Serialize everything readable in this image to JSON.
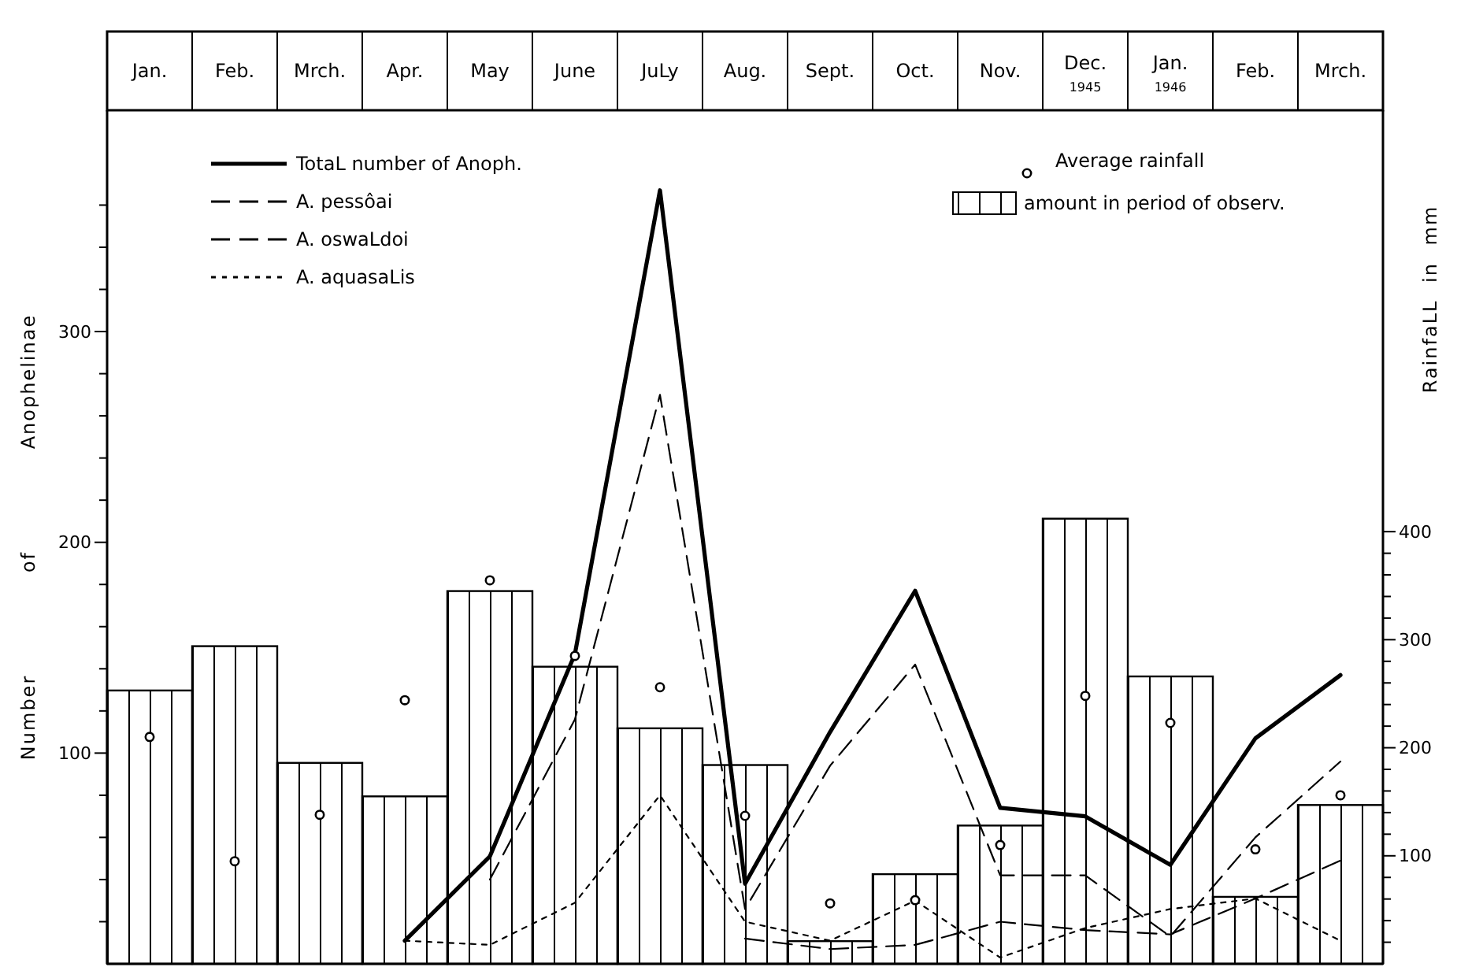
{
  "chart_data": {
    "type": "line",
    "categories": [
      "Jan.",
      "Feb.",
      "Mrch.",
      "Apr.",
      "May",
      "June",
      "JuLy",
      "Aug.",
      "Sept.",
      "Oct.",
      "Nov.",
      "Dec.\n1945",
      "Jan.\n1946",
      "Feb.",
      "Mrch."
    ],
    "ylabel": "Number of Anophelinae",
    "y2label": "RainfaLL in mm",
    "ylim": [
      0,
      405
    ],
    "yticks": [
      {
        "value": 20,
        "label": null
      },
      {
        "value": 40,
        "label": null
      },
      {
        "value": 60,
        "label": null
      },
      {
        "value": 80,
        "label": null
      },
      {
        "value": 100,
        "label": "100"
      },
      {
        "value": 120,
        "label": null
      },
      {
        "value": 140,
        "label": null
      },
      {
        "value": 160,
        "label": null
      },
      {
        "value": 180,
        "label": null
      },
      {
        "value": 200,
        "label": "200"
      },
      {
        "value": 220,
        "label": null
      },
      {
        "value": 240,
        "label": null
      },
      {
        "value": 260,
        "label": null
      },
      {
        "value": 280,
        "label": null
      },
      {
        "value": 300,
        "label": "300"
      },
      {
        "value": 320,
        "label": null
      },
      {
        "value": 340,
        "label": null
      },
      {
        "value": 360,
        "label": null
      }
    ],
    "y2lim": [
      0,
      790
    ],
    "y2ticks": [
      {
        "value": 20,
        "label": null
      },
      {
        "value": 40,
        "label": null
      },
      {
        "value": 60,
        "label": null
      },
      {
        "value": 80,
        "label": null
      },
      {
        "value": 100,
        "label": "100"
      },
      {
        "value": 120,
        "label": null
      },
      {
        "value": 140,
        "label": null
      },
      {
        "value": 160,
        "label": null
      },
      {
        "value": 180,
        "label": null
      },
      {
        "value": 200,
        "label": "200"
      },
      {
        "value": 220,
        "label": null
      },
      {
        "value": 240,
        "label": null
      },
      {
        "value": 260,
        "label": null
      },
      {
        "value": 280,
        "label": null
      },
      {
        "value": 300,
        "label": "300"
      },
      {
        "value": 320,
        "label": null
      },
      {
        "value": 340,
        "label": null
      },
      {
        "value": 360,
        "label": null
      },
      {
        "value": 380,
        "label": null
      },
      {
        "value": 400,
        "label": "400"
      }
    ],
    "grid": false,
    "legend": "top",
    "marker": "none",
    "series": [
      {
        "name": "amount in period of observ.",
        "type": "bar",
        "axis": "y2",
        "color": "#000000",
        "values": [
          253,
          294,
          186,
          155,
          345,
          275,
          218,
          184,
          21,
          83,
          128,
          412,
          266,
          62,
          147
        ]
      },
      {
        "name": "Average rainfall",
        "type": "scatter",
        "axis": "y2",
        "marker": "circle",
        "color": "#000000",
        "values": [
          210,
          95,
          138,
          244,
          355,
          285,
          256,
          137,
          56,
          59,
          110,
          248,
          223,
          106,
          156
        ]
      },
      {
        "name": "TotaL number of Anoph.",
        "line_style": "solid",
        "color": "#000000",
        "values": [
          null,
          null,
          null,
          11,
          51,
          147,
          367,
          38,
          110,
          177,
          74,
          70,
          47,
          107,
          137
        ]
      },
      {
        "name": "A. pessôai",
        "line_style": "dashed",
        "color": "#000000",
        "values": [
          null,
          null,
          null,
          null,
          40,
          116,
          270,
          26,
          94,
          142,
          42,
          42,
          13,
          60,
          96
        ]
      },
      {
        "name": "A. oswaLdoi",
        "line_style": "dashed",
        "color": "#000000",
        "values": [
          null,
          null,
          null,
          null,
          null,
          null,
          null,
          12,
          7,
          9,
          20,
          16,
          14,
          31,
          49
        ]
      },
      {
        "name": "A. aquasaLis",
        "line_style": "dotted",
        "color": "#000000",
        "values": [
          null,
          null,
          null,
          11,
          9,
          29,
          80,
          20,
          11,
          30,
          3,
          17,
          26,
          31,
          11
        ]
      }
    ]
  }
}
